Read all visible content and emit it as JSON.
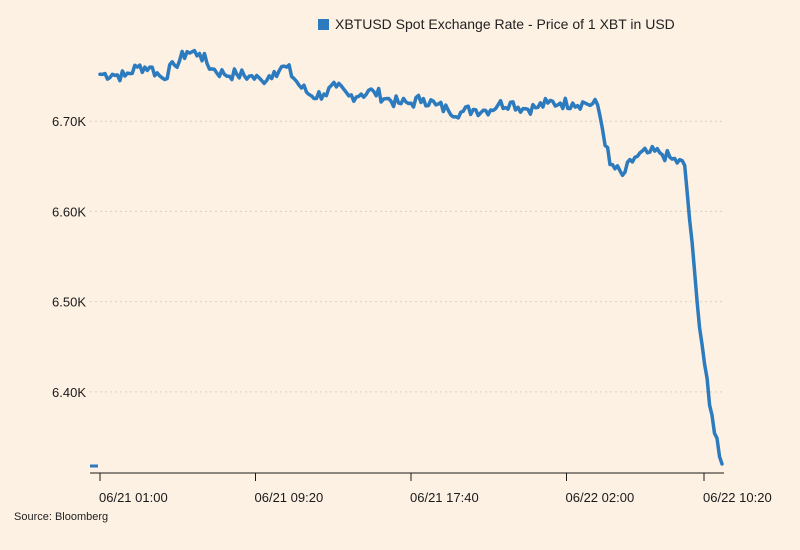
{
  "chart_data": {
    "type": "line",
    "series": [
      {
        "name": "XBTUSD Spot Exchange Rate - Price of 1 XBT in USD",
        "color": "#2c7bbf",
        "x": [
          0.0,
          0.02,
          0.04,
          0.06,
          0.08,
          0.1,
          0.12,
          0.14,
          0.16,
          0.18,
          0.2,
          0.22,
          0.24,
          0.26,
          0.28,
          0.3,
          0.32,
          0.34,
          0.36,
          0.38,
          0.4,
          0.42,
          0.44,
          0.46,
          0.48,
          0.5,
          0.52,
          0.54,
          0.56,
          0.58,
          0.6,
          0.62,
          0.64,
          0.66,
          0.68,
          0.7,
          0.72,
          0.74,
          0.76,
          0.78,
          0.8,
          0.82,
          0.84,
          0.86,
          0.88,
          0.9,
          0.92,
          0.94,
          0.96,
          0.98,
          1.0
        ],
        "values": [
          6752,
          6752,
          6750,
          6760,
          6760,
          6748,
          6762,
          6777,
          6775,
          6758,
          6752,
          6752,
          6750,
          6745,
          6755,
          6760,
          6740,
          6728,
          6730,
          6738,
          6728,
          6730,
          6733,
          6725,
          6720,
          6720,
          6725,
          6718,
          6712,
          6710,
          6713,
          6712,
          6718,
          6721,
          6714,
          6715,
          6720,
          6720,
          6720,
          6720,
          6718,
          6652,
          6640,
          6660,
          6665,
          6665,
          6658,
          6651,
          6500,
          6385,
          6320
        ]
      }
    ],
    "x_ticks": [
      "06/21 01:00",
      "06/21 09:20",
      "06/21 17:40",
      "06/22 02:00",
      "06/22 10:20"
    ],
    "y_ticks": [
      "6.40K",
      "6.50K",
      "6.60K",
      "6.70K"
    ],
    "y_tick_values": [
      6400,
      6500,
      6600,
      6700
    ],
    "ylim": [
      6310,
      6790
    ],
    "grid": true,
    "legend": "top-center",
    "source": "Source: Bloomberg",
    "colors": {
      "background": "#fdf1e4",
      "line": "#2c7bbf",
      "grid": "#d9cfc4",
      "axis": "#1a1a1a"
    }
  }
}
